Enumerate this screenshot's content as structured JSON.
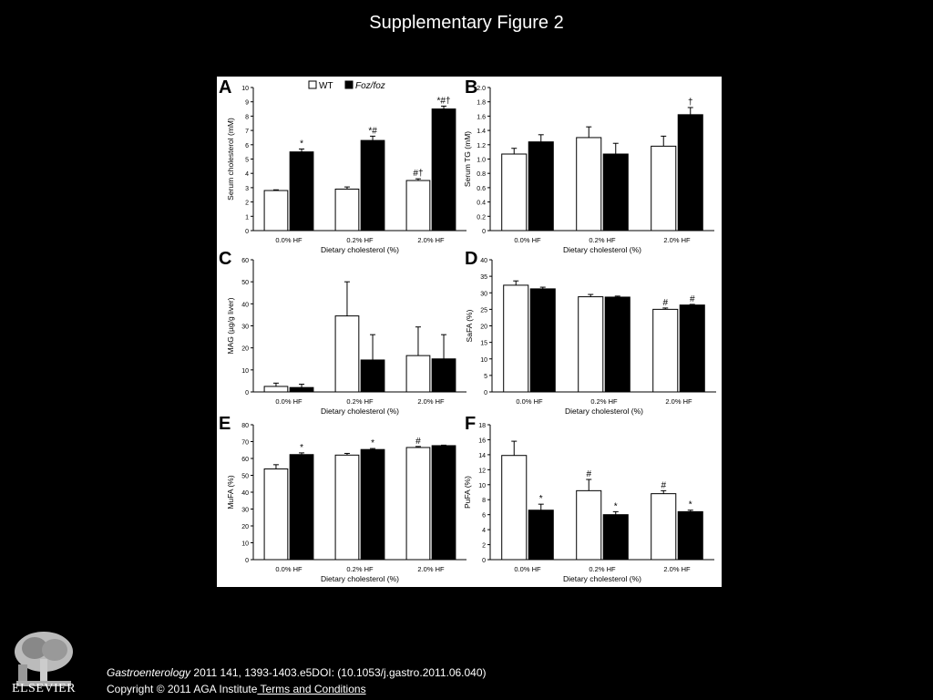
{
  "slide": {
    "title": "Supplementary Figure 2"
  },
  "footer": {
    "journal": "Gastroenterology",
    "citation_rest": " 2011 141, 1393-1403.e5DOI: (10.1053/j.gastro.2011.06.040)",
    "copyright": "Copyright © 2011 AGA Institute",
    "terms_link": " Terms and Conditions",
    "publisher_logo_text": "ELSEVIER"
  },
  "legend": {
    "wt": "WT",
    "foz": "Foz/foz"
  },
  "colors": {
    "wt_fill": "#ffffff",
    "foz_fill": "#000000",
    "background": "#000000",
    "figure_bg": "#ffffff"
  },
  "chart_data": [
    {
      "panel": "A",
      "type": "bar",
      "xlabel": "Dietary cholesterol (%)",
      "ylabel": "Serum cholesterol (mM)",
      "categories": [
        "0.0% HF",
        "0.2% HF",
        "2.0% HF"
      ],
      "ylim": [
        0,
        10
      ],
      "yticks": [
        "0",
        "1",
        "2",
        "3",
        "4",
        "5",
        "6",
        "7",
        "8",
        "9",
        "10"
      ],
      "series": [
        {
          "name": "WT",
          "values": [
            2.8,
            2.9,
            3.5
          ],
          "errors": [
            0.05,
            0.15,
            0.12
          ],
          "annotations": [
            "",
            "",
            "#†"
          ]
        },
        {
          "name": "Foz/foz",
          "values": [
            5.5,
            6.3,
            8.5
          ],
          "errors": [
            0.2,
            0.3,
            0.2
          ],
          "annotations": [
            "*",
            "*#",
            "*#†"
          ]
        }
      ],
      "legend": "top"
    },
    {
      "panel": "B",
      "type": "bar",
      "xlabel": "Dietary cholesterol (%)",
      "ylabel": "Serum TG (mM)",
      "categories": [
        "0.0% HF",
        "0.2% HF",
        "2.0% HF"
      ],
      "ylim": [
        0,
        2.0
      ],
      "yticks": [
        "0",
        "0.2",
        "0.4",
        "0.6",
        "0.8",
        "1.0",
        "1.2",
        "1.4",
        "1.6",
        "1.8",
        "2.0"
      ],
      "series": [
        {
          "name": "WT",
          "values": [
            1.07,
            1.3,
            1.18
          ],
          "errors": [
            0.08,
            0.15,
            0.14
          ],
          "annotations": [
            "",
            "",
            ""
          ]
        },
        {
          "name": "Foz/foz",
          "values": [
            1.24,
            1.07,
            1.62
          ],
          "errors": [
            0.1,
            0.15,
            0.1
          ],
          "annotations": [
            "",
            "",
            "†"
          ]
        }
      ]
    },
    {
      "panel": "C",
      "type": "bar",
      "xlabel": "Dietary cholesterol (%)",
      "ylabel": "MAG (µg/g liver)",
      "categories": [
        "0.0% HF",
        "0.2% HF",
        "2.0% HF"
      ],
      "ylim": [
        0,
        60
      ],
      "yticks": [
        "0",
        "10",
        "20",
        "30",
        "40",
        "50",
        "60"
      ],
      "series": [
        {
          "name": "WT",
          "values": [
            2.5,
            34.5,
            16.5
          ],
          "errors": [
            1.5,
            15.5,
            13
          ],
          "annotations": [
            "",
            "",
            ""
          ]
        },
        {
          "name": "Foz/foz",
          "values": [
            2.0,
            14.5,
            15.0
          ],
          "errors": [
            1.5,
            11.5,
            11
          ],
          "annotations": [
            "",
            "",
            ""
          ]
        }
      ]
    },
    {
      "panel": "D",
      "type": "bar",
      "xlabel": "Dietary cholesterol (%)",
      "ylabel": "SaFA (%)",
      "categories": [
        "0.0% HF",
        "0.2% HF",
        "2.0% HF"
      ],
      "ylim": [
        0,
        40
      ],
      "yticks": [
        "0",
        "5",
        "10",
        "15",
        "20",
        "25",
        "30",
        "35",
        "40"
      ],
      "series": [
        {
          "name": "WT",
          "values": [
            32.3,
            28.8,
            25.0
          ],
          "errors": [
            1.3,
            0.7,
            0.4
          ],
          "annotations": [
            "",
            "",
            "#"
          ]
        },
        {
          "name": "Foz/foz",
          "values": [
            31.2,
            28.7,
            26.3
          ],
          "errors": [
            0.5,
            0.3,
            0.2
          ],
          "annotations": [
            "",
            "",
            "#"
          ]
        }
      ]
    },
    {
      "panel": "E",
      "type": "bar",
      "xlabel": "Dietary cholesterol (%)",
      "ylabel": "MuFA (%)",
      "categories": [
        "0.0% HF",
        "0.2% HF",
        "2.0% HF"
      ],
      "ylim": [
        0,
        80
      ],
      "yticks": [
        "0",
        "10",
        "20",
        "30",
        "40",
        "50",
        "60",
        "70",
        "80"
      ],
      "series": [
        {
          "name": "WT",
          "values": [
            53.8,
            62.0,
            66.5
          ],
          "errors": [
            2.5,
            1.0,
            0.6
          ],
          "annotations": [
            "",
            "",
            "#"
          ]
        },
        {
          "name": "Foz/foz",
          "values": [
            62.3,
            65.3,
            67.6
          ],
          "errors": [
            1.0,
            0.6,
            0.3
          ],
          "annotations": [
            "*",
            "*",
            ""
          ]
        }
      ]
    },
    {
      "panel": "F",
      "type": "bar",
      "xlabel": "Dietary cholesterol (%)",
      "ylabel": "PuFA (%)",
      "categories": [
        "0.0% HF",
        "0.2% HF",
        "2.0% HF"
      ],
      "ylim": [
        0,
        18
      ],
      "yticks": [
        "0",
        "2",
        "4",
        "6",
        "8",
        "10",
        "12",
        "14",
        "16",
        "18"
      ],
      "series": [
        {
          "name": "WT",
          "values": [
            13.9,
            9.2,
            8.8
          ],
          "errors": [
            1.9,
            1.5,
            0.4
          ],
          "annotations": [
            "",
            "#",
            "#"
          ]
        },
        {
          "name": "Foz/foz",
          "values": [
            6.6,
            6.0,
            6.4
          ],
          "errors": [
            0.8,
            0.4,
            0.2
          ],
          "annotations": [
            "*",
            "*",
            "*"
          ]
        }
      ]
    }
  ]
}
